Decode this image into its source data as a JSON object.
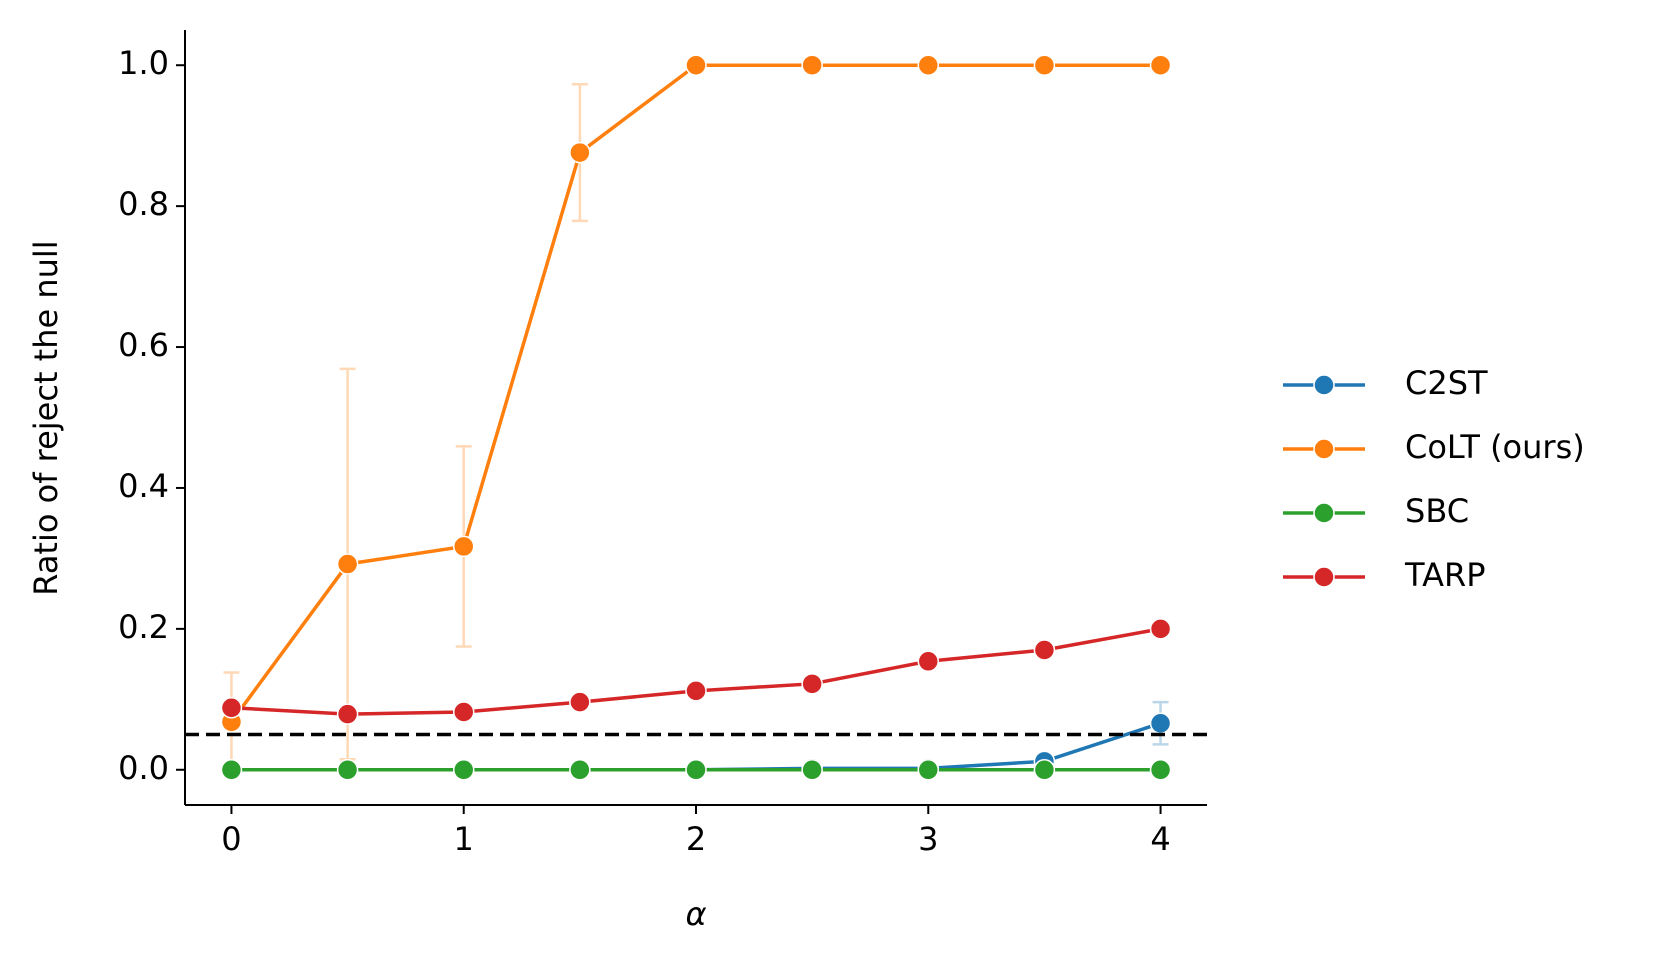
{
  "chart_data": {
    "type": "line",
    "xlabel": "α",
    "ylabel": "Ratio of reject the null",
    "x": [
      0,
      0.5,
      1,
      1.5,
      2,
      2.5,
      3,
      3.5,
      4
    ],
    "series": [
      {
        "name": "C2ST",
        "color": "#1f77b4",
        "values": [
          0,
          0,
          0,
          0,
          0,
          0.002,
          0.002,
          0.012,
          0.066
        ],
        "errors": [
          0,
          0,
          0,
          0,
          0,
          0,
          0,
          0,
          0.03
        ]
      },
      {
        "name": "CoLT (ours)",
        "color": "#ff7f0e",
        "values": [
          0.068,
          0.292,
          0.317,
          0.876,
          1,
          1,
          1,
          1,
          1
        ],
        "errors": [
          0.07,
          0.277,
          0.142,
          0.097,
          0,
          0,
          0,
          0,
          0
        ]
      },
      {
        "name": "SBC",
        "color": "#2ca02c",
        "values": [
          0,
          0,
          0,
          0,
          0,
          0,
          0,
          0,
          0
        ],
        "errors": [
          0,
          0,
          0,
          0,
          0,
          0,
          0,
          0,
          0
        ]
      },
      {
        "name": "TARP",
        "color": "#d62728",
        "values": [
          0.088,
          0.079,
          0.082,
          0.096,
          0.112,
          0.122,
          0.154,
          0.17,
          0.2
        ],
        "errors": [
          0.004,
          0.004,
          0.004,
          0.005,
          0.008,
          0.005,
          0.004,
          0.004,
          0.005
        ]
      }
    ],
    "hline": {
      "value": 0.05,
      "color": "#000000"
    },
    "xlim": [
      -0.2,
      4.2
    ],
    "xticks": [
      0,
      1,
      2,
      3,
      4
    ],
    "ylim": [
      -0.05,
      1.05
    ],
    "yticks": [
      {
        "value": 0,
        "label": "0.0"
      },
      {
        "value": 0.2,
        "label": "0.2"
      },
      {
        "value": 0.4,
        "label": "0.4"
      },
      {
        "value": 0.6,
        "label": "0.6"
      },
      {
        "value": 0.8,
        "label": "0.8"
      },
      {
        "value": 1,
        "label": "1.0"
      }
    ],
    "legend": "outside right",
    "grid": false
  }
}
